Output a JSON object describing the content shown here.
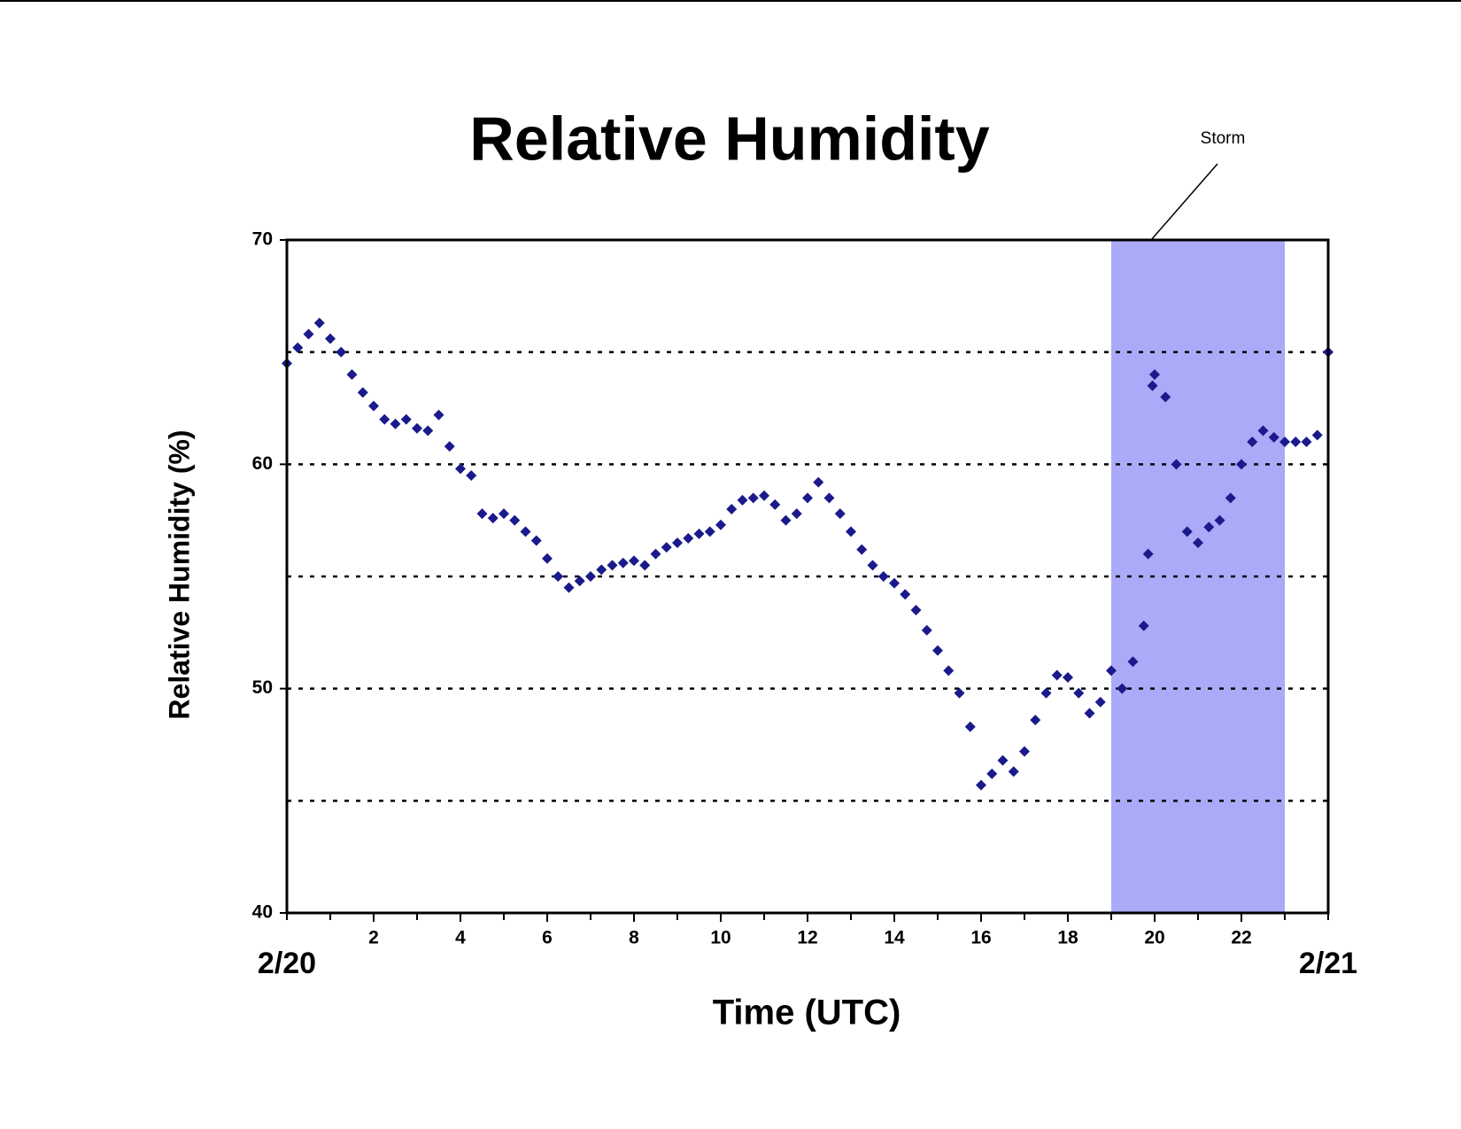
{
  "chart_data": {
    "type": "scatter",
    "title": "Relative Humidity",
    "x_label": "Time (UTC)",
    "y_label": "Relative Humidity (%)",
    "color": "#1a1a8c",
    "storm": {
      "label": "Storm",
      "x": [
        19,
        23
      ],
      "color": "#aaaaf8"
    },
    "xlim": [
      0,
      24
    ],
    "xticks": [
      2,
      4,
      6,
      8,
      10,
      12,
      14,
      16,
      18,
      20,
      22
    ],
    "minor_xticks": [
      0,
      1,
      2,
      3,
      4,
      5,
      6,
      7,
      8,
      9,
      10,
      11,
      12,
      13,
      14,
      15,
      16,
      17,
      18,
      19,
      20,
      21,
      22,
      23,
      24
    ],
    "date_labels": [
      {
        "value": 0,
        "label": "2/20"
      },
      {
        "value": 24,
        "label": "2/21"
      }
    ],
    "ylim": [
      40,
      70
    ],
    "yticks": [
      40,
      50,
      60,
      70
    ],
    "ygrid": [
      45,
      50,
      55,
      60,
      65
    ],
    "x": [
      0,
      0.25,
      0.5,
      0.75,
      1,
      1.25,
      1.5,
      1.75,
      2,
      2.25,
      2.5,
      2.75,
      3,
      3.25,
      3.5,
      3.75,
      4,
      4.25,
      4.5,
      4.75,
      5,
      5.25,
      5.5,
      5.75,
      6,
      6.25,
      6.5,
      6.75,
      7,
      7.25,
      7.5,
      7.75,
      8,
      8.25,
      8.5,
      8.75,
      9,
      9.25,
      9.5,
      9.75,
      10,
      10.25,
      10.5,
      10.75,
      11,
      11.25,
      11.5,
      11.75,
      12,
      12.25,
      12.5,
      12.75,
      13,
      13.25,
      13.5,
      13.75,
      14,
      14.25,
      14.5,
      14.75,
      15,
      15.25,
      15.5,
      15.75,
      16,
      16.25,
      16.5,
      16.75,
      17,
      17.25,
      17.5,
      17.75,
      18,
      18.25,
      18.5,
      18.75,
      19,
      19.25,
      19.5,
      19.75,
      19.85,
      19.95,
      20,
      20.25,
      20.5,
      20.75,
      21,
      21.25,
      21.5,
      21.75,
      22,
      22.25,
      22.5,
      22.75,
      23,
      23.25,
      23.5,
      23.75,
      24
    ],
    "values": [
      64.5,
      65.2,
      65.8,
      66.3,
      65.6,
      65.0,
      64.0,
      63.2,
      62.6,
      62.0,
      61.8,
      62.0,
      61.6,
      61.5,
      62.2,
      60.8,
      59.8,
      59.5,
      57.8,
      57.6,
      57.8,
      57.5,
      57.0,
      56.6,
      55.8,
      55.0,
      54.5,
      54.8,
      55.0,
      55.3,
      55.5,
      55.6,
      55.7,
      55.5,
      56.0,
      56.3,
      56.5,
      56.7,
      56.9,
      57.0,
      57.3,
      58.0,
      58.4,
      58.5,
      58.6,
      58.2,
      57.5,
      57.8,
      58.5,
      59.2,
      58.5,
      57.8,
      57.0,
      56.2,
      55.5,
      55.0,
      54.7,
      54.2,
      53.5,
      52.6,
      51.7,
      50.8,
      49.8,
      48.3,
      45.7,
      46.2,
      46.8,
      46.3,
      47.2,
      48.6,
      49.8,
      50.6,
      50.5,
      49.8,
      48.9,
      49.4,
      50.8,
      50.0,
      51.2,
      52.8,
      56.0,
      63.5,
      64.0,
      63.0,
      60.0,
      57.0,
      56.5,
      57.2,
      57.5,
      58.5,
      60.0,
      61.0,
      61.5,
      61.2,
      61.0,
      61.0,
      61.0,
      61.3,
      65.0
    ]
  }
}
